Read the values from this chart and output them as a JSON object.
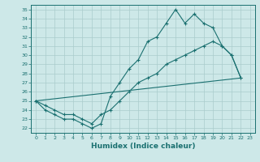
{
  "xlabel": "Humidex (Indice chaleur)",
  "bg_color": "#cde8e8",
  "grid_color": "#aacccc",
  "line_color": "#1a7070",
  "xlim": [
    -0.5,
    23.5
  ],
  "ylim": [
    21.5,
    35.5
  ],
  "yticks": [
    22,
    23,
    24,
    25,
    26,
    27,
    28,
    29,
    30,
    31,
    32,
    33,
    34,
    35
  ],
  "xticks": [
    0,
    1,
    2,
    3,
    4,
    5,
    6,
    7,
    8,
    9,
    10,
    11,
    12,
    13,
    14,
    15,
    16,
    17,
    18,
    19,
    20,
    21,
    22,
    23
  ],
  "line1_x": [
    0,
    1,
    2,
    3,
    4,
    5,
    6,
    7,
    8,
    9,
    10,
    11,
    12,
    13,
    14,
    15,
    16,
    17,
    18,
    19,
    20,
    21,
    22
  ],
  "line1_y": [
    25.0,
    24.0,
    23.5,
    23.0,
    23.0,
    22.5,
    22.0,
    22.5,
    25.5,
    27.0,
    28.5,
    29.5,
    31.5,
    32.0,
    33.5,
    35.0,
    33.5,
    34.5,
    33.5,
    33.0,
    31.0,
    30.0,
    27.5
  ],
  "line2_x": [
    0,
    22
  ],
  "line2_y": [
    25.0,
    27.5
  ],
  "line3_x": [
    0,
    1,
    2,
    3,
    4,
    5,
    6,
    7,
    8,
    9,
    10,
    11,
    12,
    13,
    14,
    15,
    16,
    17,
    18,
    19,
    20,
    21,
    22
  ],
  "line3_y": [
    25.0,
    24.5,
    24.0,
    23.5,
    23.5,
    23.0,
    22.5,
    23.5,
    24.0,
    25.0,
    26.0,
    27.0,
    27.5,
    28.0,
    29.0,
    29.5,
    30.0,
    30.5,
    31.0,
    31.5,
    31.0,
    30.0,
    27.5
  ]
}
